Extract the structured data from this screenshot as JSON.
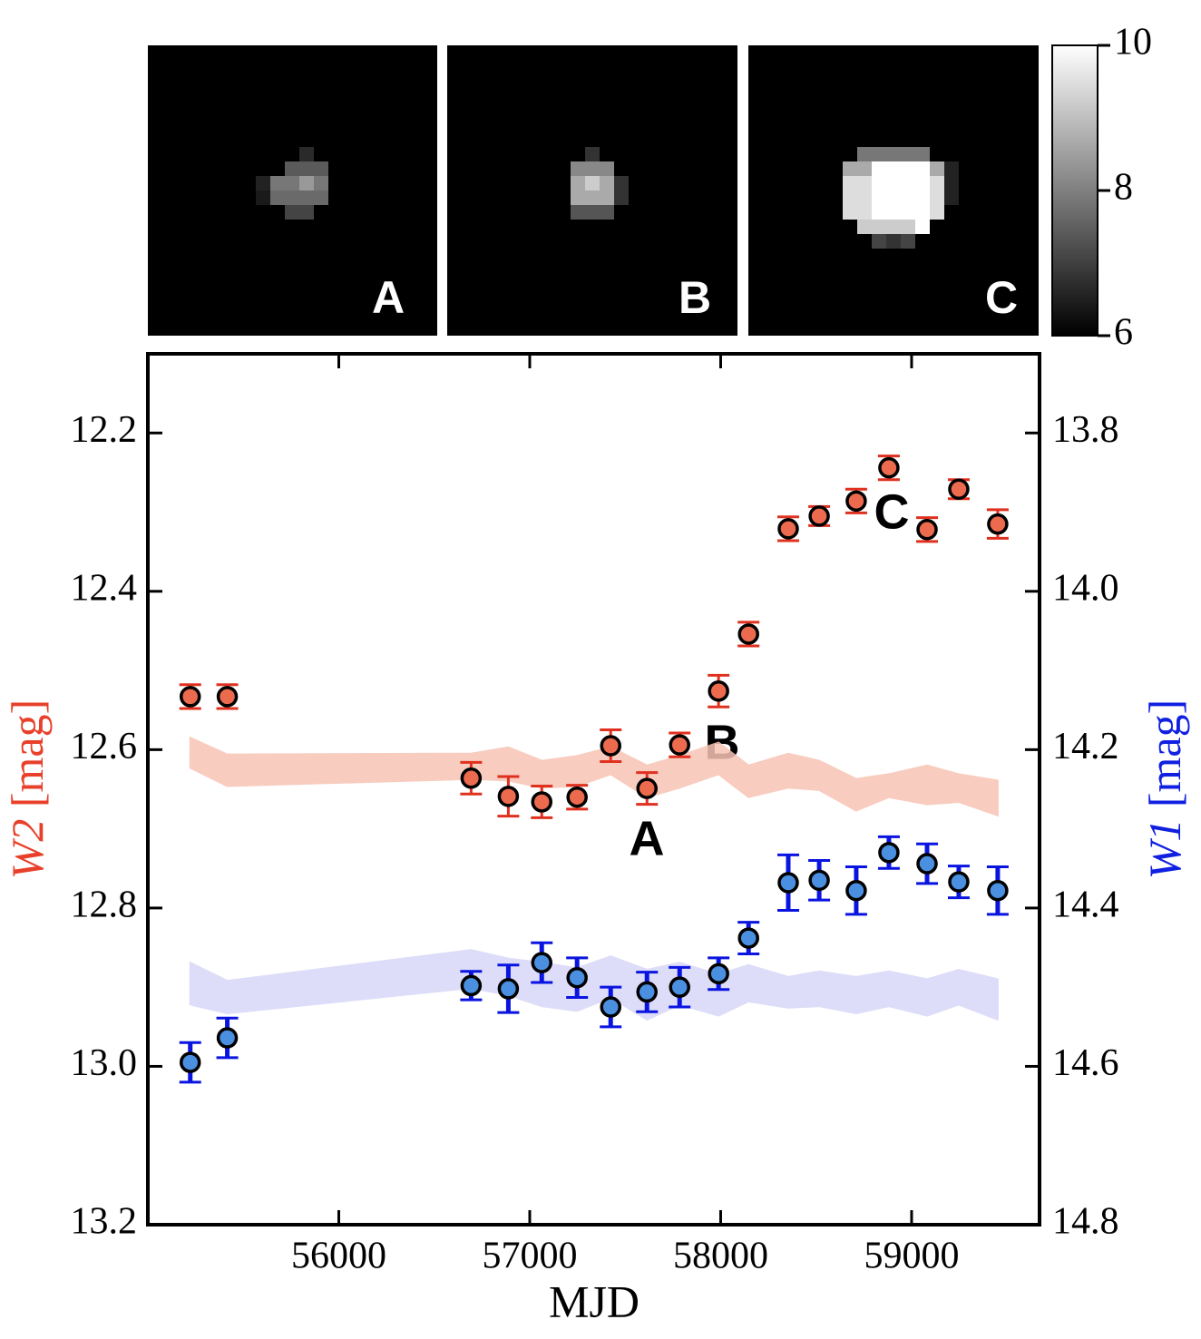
{
  "chart_data": {
    "type": "errorbar",
    "xlabel": "MJD",
    "y_unit": "[mag]",
    "xlim": [
      55000,
      59670
    ],
    "xticks": [
      56000,
      57000,
      58000,
      59000
    ],
    "ylim": [
      13.2,
      12.1
    ],
    "yticks": [
      12.2,
      12.4,
      12.6,
      12.8,
      {
        "value": 13,
        "label": "13.0"
      },
      13.2
    ],
    "y2lim": [
      14.8,
      13.7
    ],
    "y2ticks": [
      13.8,
      {
        "value": 14,
        "label": "14.0"
      },
      14.2,
      14.4,
      14.6,
      14.8
    ],
    "x": [
      55222,
      55416,
      56693,
      56888,
      57063,
      57248,
      57424,
      57614,
      57785,
      57989,
      58146,
      58354,
      58516,
      58710,
      58881,
      59081,
      59247,
      59451
    ],
    "series": [
      {
        "name": "W2",
        "axis": "y",
        "color": "#ec6b4e",
        "ecolor": "#e0301f",
        "band_color": "#f7c4b4",
        "label_color": "#e8402a",
        "values": [
          12.533,
          12.533,
          12.636,
          12.659,
          12.666,
          12.66,
          12.595,
          12.649,
          12.594,
          12.526,
          12.454,
          12.321,
          12.305,
          12.286,
          12.244,
          12.322,
          12.271,
          12.315
        ],
        "errors": [
          0.015,
          0.015,
          0.02,
          0.025,
          0.02,
          0.015,
          0.02,
          0.02,
          0.015,
          0.02,
          0.015,
          0.015,
          0.012,
          0.015,
          0.015,
          0.015,
          0.012,
          0.018
        ],
        "band_upper": [
          12.585,
          12.606,
          12.605,
          12.597,
          12.614,
          12.608,
          12.597,
          12.62,
          12.608,
          12.591,
          12.62,
          12.605,
          12.614,
          12.637,
          12.631,
          12.62,
          12.631,
          12.639
        ],
        "band_lower": [
          12.623,
          12.646,
          12.637,
          12.639,
          12.648,
          12.646,
          12.631,
          12.66,
          12.648,
          12.631,
          12.66,
          12.648,
          12.651,
          12.677,
          12.66,
          12.669,
          12.666,
          12.683
        ]
      },
      {
        "name": "W1",
        "axis": "y2",
        "color": "#4a8fe0",
        "ecolor": "#0a14e0",
        "band_color": "#d8d8f8",
        "label_color": "#1020e0",
        "values": [
          14.595,
          14.564,
          14.498,
          14.502,
          14.469,
          14.488,
          14.525,
          14.506,
          14.5,
          14.483,
          14.438,
          14.368,
          14.365,
          14.378,
          14.33,
          14.344,
          14.367,
          14.378
        ],
        "errors": [
          0.025,
          0.025,
          0.018,
          0.03,
          0.025,
          0.025,
          0.025,
          0.025,
          0.025,
          0.02,
          0.02,
          0.035,
          0.025,
          0.03,
          0.02,
          0.025,
          0.02,
          0.03
        ],
        "band_upper": [
          14.469,
          14.492,
          14.453,
          14.464,
          14.469,
          14.476,
          14.461,
          14.478,
          14.469,
          14.484,
          14.472,
          14.487,
          14.48,
          14.487,
          14.48,
          14.49,
          14.478,
          14.49
        ],
        "band_lower": [
          14.522,
          14.533,
          14.501,
          14.51,
          14.524,
          14.53,
          14.513,
          14.541,
          14.522,
          14.536,
          14.518,
          14.526,
          14.524,
          14.533,
          14.524,
          14.536,
          14.522,
          14.541
        ]
      }
    ],
    "annotations": [
      "A",
      "B",
      "C"
    ]
  },
  "images": {
    "panels": [
      "A",
      "B",
      "C"
    ],
    "colorbar": {
      "lim": [
        6,
        10
      ],
      "ticks": [
        6,
        8,
        10
      ]
    }
  }
}
